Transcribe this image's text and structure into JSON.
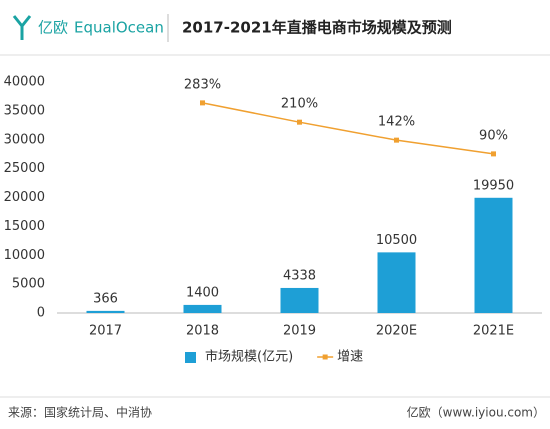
{
  "brand": {
    "cn": "亿欧",
    "en": "EqualOcean"
  },
  "chart_data": {
    "type": "bar",
    "title": "2017-2021年直播电商市场规模及预测",
    "categories": [
      "2017",
      "2018",
      "2019",
      "2020E",
      "2021E"
    ],
    "series": [
      {
        "name": "市场规模(亿元)",
        "color": "#1e9fd6",
        "values": [
          366,
          1400,
          4338,
          10500,
          19950
        ]
      },
      {
        "name": "增速",
        "type": "line",
        "axis": "y2",
        "color": "#f0a030",
        "values": [
          null,
          283,
          210,
          142,
          90
        ],
        "value_labels": [
          null,
          "283%",
          "210%",
          "142%",
          "90%"
        ]
      }
    ],
    "ylim": [
      0,
      40000
    ],
    "yticks": [
      0,
      5000,
      10000,
      15000,
      20000,
      25000,
      30000,
      35000,
      40000
    ],
    "y2lim": [
      -512,
      362
    ],
    "grid": false,
    "legend": "bottom"
  },
  "footer": {
    "source": "来源：国家统计局、中消协",
    "credit": "亿欧（www.iyiou.com）"
  }
}
